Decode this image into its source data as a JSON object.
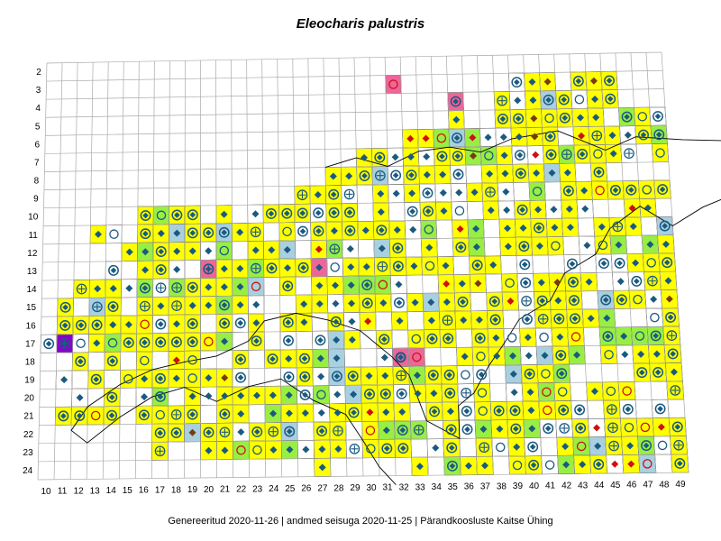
{
  "map": {
    "title": "Eleocharis palustris",
    "footer": "Genereeritud 2020-11-26  |  andmed seisuga 2020-11-25  |  Pärandkoosluste Kaitse Ühing",
    "row_labels": [
      "2",
      "3",
      "4",
      "5",
      "6",
      "7",
      "8",
      "9",
      "10",
      "11",
      "12",
      "13",
      "14",
      "15",
      "16",
      "17",
      "18",
      "19",
      "20",
      "21",
      "22",
      "23",
      "24"
    ],
    "col_labels": [
      "10",
      "11",
      "12",
      "13",
      "14",
      "15",
      "16",
      "17",
      "18",
      "19",
      "20",
      "21",
      "22",
      "23",
      "24",
      "25",
      "26",
      "27",
      "28",
      "29",
      "30",
      "31",
      "32",
      "33",
      "34",
      "35",
      "36",
      "37",
      "38",
      "39",
      "40",
      "41",
      "42",
      "43",
      "44",
      "45",
      "46",
      "47",
      "48",
      "49"
    ],
    "colors": {
      "yellow": "#ffff00",
      "green": "#99ee44",
      "lightblue": "#a8d0e0",
      "pink": "#ee6699",
      "purple": "#8800cc",
      "grid": "#aaaaaa",
      "marker_blue": "#1a5a80",
      "marker_red": "#cc1111",
      "marker_brown": "#7a3a10"
    },
    "legend_symbols": [
      "diamond-filled",
      "diamond-in-circle",
      "circle-open",
      "plus-in-circle",
      "plus"
    ]
  }
}
